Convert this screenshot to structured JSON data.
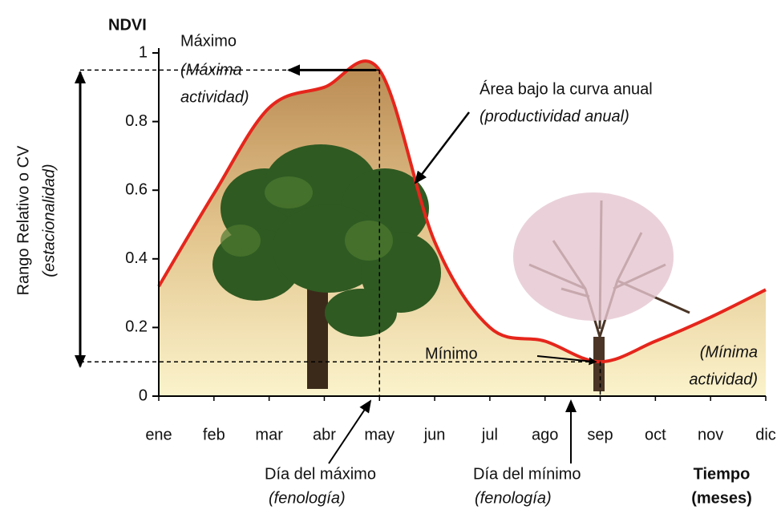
{
  "chart_data": {
    "type": "line",
    "y_label": "NDVI",
    "range_label": "Rango Relativo o CV",
    "range_sublabel": "(estacionalidad)",
    "x_label": "Tiempo",
    "x_sublabel": "(meses)",
    "categories": [
      "ene",
      "feb",
      "mar",
      "abr",
      "may",
      "jun",
      "jul",
      "ago",
      "sep",
      "oct",
      "nov",
      "dic"
    ],
    "series": [
      {
        "name": "NDVI",
        "color": "#e5261c",
        "values": [
          0.32,
          0.59,
          0.84,
          0.9,
          0.95,
          0.45,
          0.2,
          0.16,
          0.1,
          0.16,
          0.23,
          0.31
        ]
      }
    ],
    "ylim": [
      0,
      1
    ],
    "yticks": [
      0,
      0.2,
      0.4,
      0.6,
      0.8,
      1
    ],
    "annotations": [
      "Máximo",
      "(Máxima",
      "actividad)",
      "Área bajo la curva anual",
      "(productividad anual)",
      "Mínimo",
      "(Mínima",
      "actividad)",
      "Día del máximo",
      "(fenología)",
      "Día del mínimo",
      "(fenología)"
    ]
  }
}
